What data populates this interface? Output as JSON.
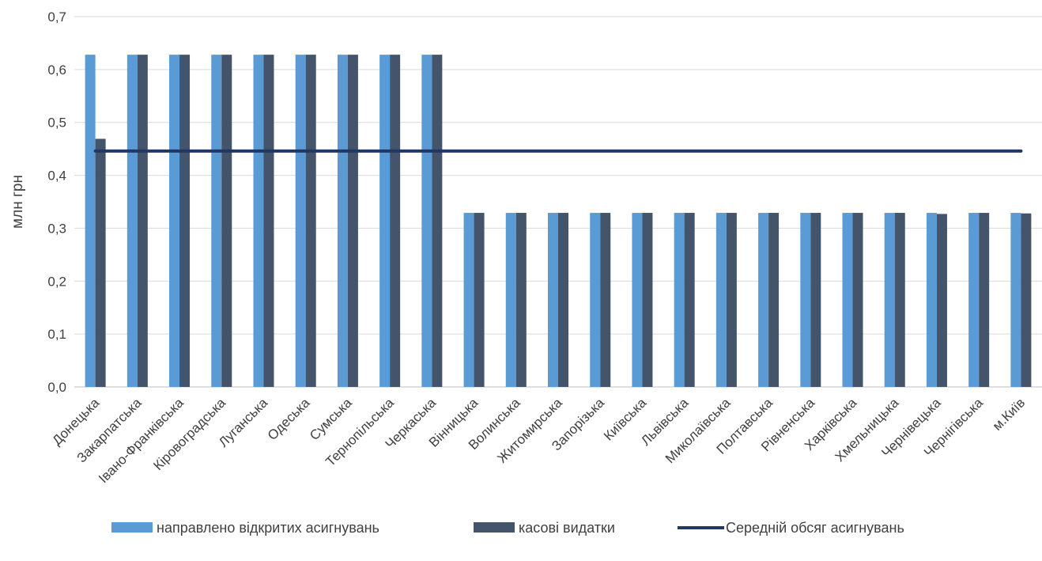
{
  "chart_data": {
    "type": "bar",
    "ylabel": "млн грн",
    "ylim": [
      0,
      0.7
    ],
    "yticks": [
      "0,0",
      "0,1",
      "0,2",
      "0,3",
      "0,4",
      "0,5",
      "0,6",
      "0,7"
    ],
    "grid": true,
    "legend_position": "bottom",
    "categories": [
      "Донецька",
      "Закарпатська",
      "Івано-Франківська",
      "Кіровоградська",
      "Луганська",
      "Одеська",
      "Сумська",
      "Тернопільська",
      "Черкаська",
      "Вінницька",
      "Волинська",
      "Житомирська",
      "Запорізька",
      "Київська",
      "Львівська",
      "Миколаївська",
      "Полтавська",
      "Рівненська",
      "Харківська",
      "Хмельницька",
      "Чернівецька",
      "Чернігівська",
      "м.Київ"
    ],
    "series": [
      {
        "name": "направлено відкритих асигнувань",
        "kind": "bar",
        "color": "#5b9bd5",
        "values": [
          0.628,
          0.628,
          0.628,
          0.628,
          0.628,
          0.628,
          0.628,
          0.628,
          0.628,
          0.329,
          0.329,
          0.329,
          0.329,
          0.329,
          0.329,
          0.329,
          0.329,
          0.329,
          0.329,
          0.329,
          0.329,
          0.329,
          0.329
        ]
      },
      {
        "name": "касові видатки",
        "kind": "bar",
        "color": "#44546a",
        "values": [
          0.469,
          0.628,
          0.628,
          0.628,
          0.628,
          0.628,
          0.628,
          0.628,
          0.628,
          0.329,
          0.329,
          0.329,
          0.329,
          0.329,
          0.329,
          0.329,
          0.329,
          0.329,
          0.329,
          0.329,
          0.327,
          0.329,
          0.328
        ]
      },
      {
        "name": "Середній обсяг асигнувань",
        "kind": "line",
        "color": "#203864",
        "value": 0.446
      }
    ]
  }
}
